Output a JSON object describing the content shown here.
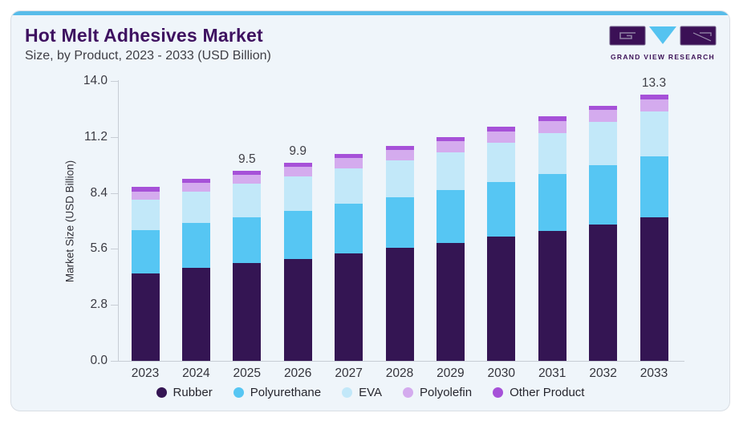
{
  "page": {
    "title": "Hot Melt Adhesives Market",
    "subtitle": "Size, by Product, 2023 - 2033 (USD Billion)",
    "brand": {
      "name": "GRAND VIEW RESEARCH"
    },
    "colors": {
      "accent_strip": "#58bce9",
      "card_background": "#eff5fa",
      "title_text": "#3e1160",
      "brand_purple": "#3b1056",
      "brand_blue": "#55c3f0"
    }
  },
  "chart_data": {
    "type": "bar",
    "stacked": true,
    "title": "Hot Melt Adhesives Market Size, by Product, 2023 - 2033 (USD Billion)",
    "xlabel": "",
    "ylabel": "Market Size (USD Billion)",
    "ylim": [
      0,
      14
    ],
    "yticks": [
      "0.0",
      "2.8",
      "5.6",
      "8.4",
      "11.2",
      "14.0"
    ],
    "grid": false,
    "legend_position": "bottom",
    "categories": [
      "2023",
      "2024",
      "2025",
      "2026",
      "2027",
      "2028",
      "2029",
      "2030",
      "2031",
      "2032",
      "2033"
    ],
    "series": [
      {
        "name": "Rubber",
        "color": "#341553",
        "values": [
          4.37,
          4.64,
          4.89,
          5.11,
          5.37,
          5.64,
          5.91,
          6.21,
          6.51,
          6.82,
          7.2
        ]
      },
      {
        "name": "Polyurethane",
        "color": "#56c6f3",
        "values": [
          2.17,
          2.25,
          2.3,
          2.41,
          2.48,
          2.54,
          2.64,
          2.73,
          2.84,
          2.96,
          3.04
        ]
      },
      {
        "name": "EVA",
        "color": "#c2e8f9",
        "values": [
          1.54,
          1.58,
          1.67,
          1.7,
          1.77,
          1.84,
          1.88,
          1.96,
          2.05,
          2.18,
          2.24
        ]
      },
      {
        "name": "Polyolefin",
        "color": "#d4abee",
        "values": [
          0.39,
          0.43,
          0.44,
          0.47,
          0.51,
          0.54,
          0.56,
          0.57,
          0.61,
          0.58,
          0.6
        ]
      },
      {
        "name": "Other Product",
        "color": "#a651d8",
        "values": [
          0.25,
          0.22,
          0.2,
          0.21,
          0.22,
          0.21,
          0.21,
          0.23,
          0.24,
          0.21,
          0.22
        ]
      }
    ],
    "annotations": [
      {
        "category": "2025",
        "label": "9.5"
      },
      {
        "category": "2026",
        "label": "9.9"
      },
      {
        "category": "2033",
        "label": "13.3"
      }
    ]
  }
}
